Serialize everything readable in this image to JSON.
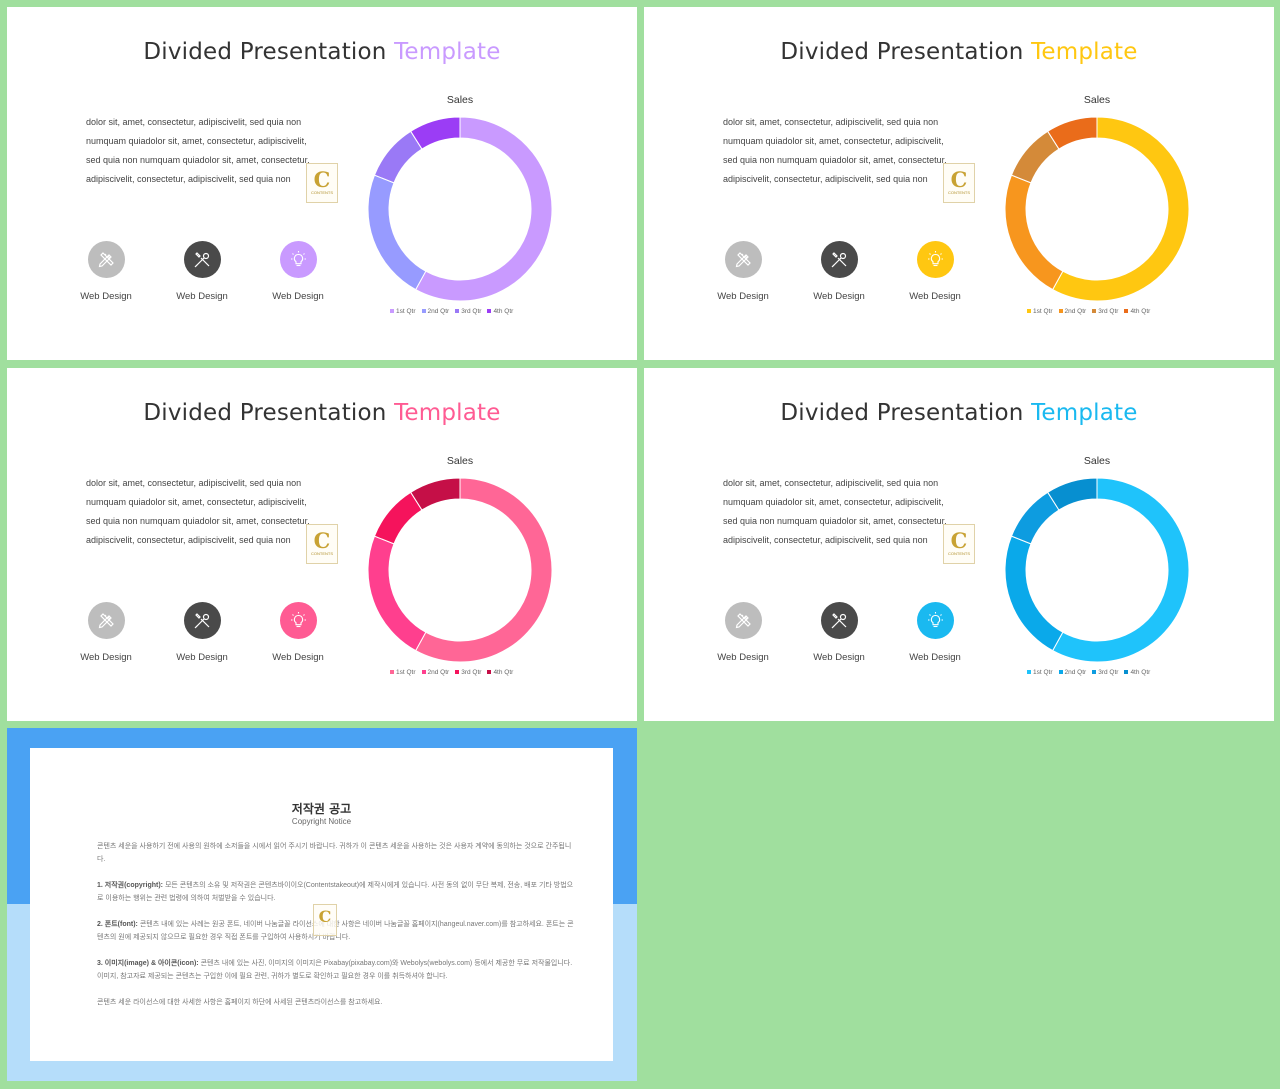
{
  "slides": [
    {
      "title_main": "Divided Presentation",
      "title_accent": "Template",
      "accent": "#c99aff",
      "paragraph": "dolor sit, amet, consectetur, adipiscivelit, sed quia non numquam quiadolor sit, amet, consectetur, adipiscivelit, sed quia non numquam quiadolor sit, amet, consectetur, adipiscivelit, consectetur, adipiscivelit, sed quia non",
      "logo": {
        "letter": "C",
        "text": "CONTENTS"
      },
      "icons": [
        {
          "icon": "pencil-ruler-icon",
          "color": "#bdbdbd",
          "label": "Web Design"
        },
        {
          "icon": "tools-icon",
          "color": "#4a4a4a",
          "label": "Web Design"
        },
        {
          "icon": "lightbulb-icon",
          "color": "#c99aff",
          "label": "Web Design"
        }
      ],
      "chart_data": {
        "type": "donut",
        "title": "Sales",
        "categories": [
          "1st Qtr",
          "2nd Qtr",
          "3rd Qtr",
          "4th Qtr"
        ],
        "values": [
          58,
          23,
          10,
          9
        ],
        "colors": [
          "#c99aff",
          "#979bff",
          "#9a79f6",
          "#9b3df5"
        ]
      }
    },
    {
      "title_main": "Divided Presentation",
      "title_accent": "Template",
      "accent": "#ffc711",
      "paragraph": "dolor sit, amet, consectetur, adipiscivelit, sed quia non numquam quiadolor sit, amet, consectetur, adipiscivelit, sed quia non numquam quiadolor sit, amet, consectetur, adipiscivelit, consectetur, adipiscivelit, sed quia non",
      "logo": {
        "letter": "C",
        "text": "CONTENTS"
      },
      "icons": [
        {
          "icon": "pencil-ruler-icon",
          "color": "#bdbdbd",
          "label": "Web Design"
        },
        {
          "icon": "tools-icon",
          "color": "#4a4a4a",
          "label": "Web Design"
        },
        {
          "icon": "lightbulb-icon",
          "color": "#ffc711",
          "label": "Web Design"
        }
      ],
      "chart_data": {
        "type": "donut",
        "title": "Sales",
        "categories": [
          "1st Qtr",
          "2nd Qtr",
          "3rd Qtr",
          "4th Qtr"
        ],
        "values": [
          58,
          23,
          10,
          9
        ],
        "colors": [
          "#ffc711",
          "#f7961e",
          "#d48a39",
          "#ea6c1a"
        ]
      }
    },
    {
      "title_main": "Divided Presentation",
      "title_accent": "Template",
      "accent": "#ff5b93",
      "paragraph": "dolor sit, amet, consectetur, adipiscivelit, sed quia non numquam quiadolor sit, amet, consectetur, adipiscivelit, sed quia non numquam quiadolor sit, amet, consectetur, adipiscivelit, consectetur, adipiscivelit, sed quia non",
      "logo": {
        "letter": "C",
        "text": "CONTENTS"
      },
      "icons": [
        {
          "icon": "pencil-ruler-icon",
          "color": "#bdbdbd",
          "label": "Web Design"
        },
        {
          "icon": "tools-icon",
          "color": "#4a4a4a",
          "label": "Web Design"
        },
        {
          "icon": "lightbulb-icon",
          "color": "#ff5b93",
          "label": "Web Design"
        }
      ],
      "chart_data": {
        "type": "donut",
        "title": "Sales",
        "categories": [
          "1st Qtr",
          "2nd Qtr",
          "3rd Qtr",
          "4th Qtr"
        ],
        "values": [
          58,
          23,
          10,
          9
        ],
        "colors": [
          "#ff6696",
          "#ff3f8e",
          "#f5135c",
          "#c50f47"
        ]
      }
    },
    {
      "title_main": "Divided Presentation",
      "title_accent": "Template",
      "accent": "#1ab9f0",
      "paragraph": "dolor sit, amet, consectetur, adipiscivelit, sed quia non numquam quiadolor sit, amet, consectetur, adipiscivelit, sed quia non numquam quiadolor sit, amet, consectetur, adipiscivelit, consectetur, adipiscivelit, sed quia non",
      "logo": {
        "letter": "C",
        "text": "CONTENTS"
      },
      "icons": [
        {
          "icon": "pencil-ruler-icon",
          "color": "#bdbdbd",
          "label": "Web Design"
        },
        {
          "icon": "tools-icon",
          "color": "#4a4a4a",
          "label": "Web Design"
        },
        {
          "icon": "lightbulb-icon",
          "color": "#1ab9f0",
          "label": "Web Design"
        }
      ],
      "chart_data": {
        "type": "donut",
        "title": "Sales",
        "categories": [
          "1st Qtr",
          "2nd Qtr",
          "3rd Qtr",
          "4th Qtr"
        ],
        "values": [
          58,
          23,
          10,
          9
        ],
        "colors": [
          "#1fc3fb",
          "#0aa9ea",
          "#0d9ce0",
          "#078fd0"
        ]
      }
    }
  ],
  "notice": {
    "title": "저작권 공고",
    "subtitle": "Copyright Notice",
    "paragraphs": [
      {
        "head": "",
        "text": "콘텐츠 세운을 사용하기 전에 사용의 원하에 소저들을 시에서 읽어 주시기 바랍니다. 귀하가 이 콘텐츠 세운을 사용하는 것은 사용자 계약에 동의하는 것으로 간주됩니다."
      },
      {
        "head": "1. 저작권(copyright):",
        "text": "모든 콘텐츠의 소유 및 저작권은 콘텐츠바이이오(Contentstakeout)에 제작시에게 있습니다. 사전 동의 없이 무단 복제, 전송, 배포 기타 방법으로 이용하는 행위는 관련 법령에 의하여 처벌받을 수 있습니다."
      },
      {
        "head": "2. 폰트(font):",
        "text": "콘텐츠 내에 있는 사례는 원공 폰트, 네이버 나눔글꼴 라이선스에 대한 사항은 네이버 나눔글꼴 홈페이지(hangeul.naver.com)를 참고하세요. 폰트는 콘텐츠의 원에 제공되지 않으므로 필요한 경우 직접 폰트를 구입하여 사용하시기 바랍니다."
      },
      {
        "head": "3. 이미지(image) & 아이콘(icon):",
        "text": "콘텐츠 내에 있는 사진, 이미지의 이미지은 Pixabay(pixabay.com)와 Webolys(webolys.com) 등에서 제공한 무료 저작물입니다. 이미지, 참고자료 제공되는 콘텐츠는 구입한 이에 필요 관련, 귀하가 별도로 확인하고 필요한 경우 이를 취득하셔야 합니다."
      },
      {
        "head": "",
        "text": "콘텐츠 세운 라이선스에 대한 사세한 사항은 홈페이지 하단에 사세된 콘텐츠라이선스를 참고하세요."
      }
    ],
    "logo_letter": "C"
  }
}
